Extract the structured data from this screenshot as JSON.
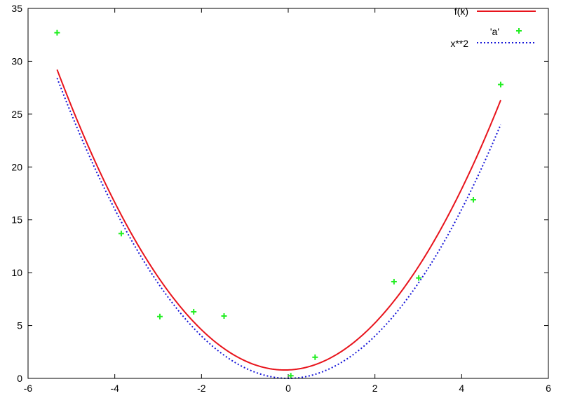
{
  "chart_data": {
    "type": "line",
    "title": "",
    "xlabel": "",
    "ylabel": "",
    "xlim": [
      -6,
      6
    ],
    "ylim": [
      0,
      35
    ],
    "x_ticks": [
      -6,
      -4,
      -2,
      0,
      2,
      4,
      6
    ],
    "y_ticks": [
      0,
      5,
      10,
      15,
      20,
      25,
      30,
      35
    ],
    "grid": false,
    "legend_position": "top-right",
    "series": [
      {
        "name": "f(x)",
        "kind": "line",
        "style": "solid",
        "color": "#e8141c",
        "x_range": [
          -5.33,
          4.9
        ],
        "function": {
          "form": "a*x^2 + b*x + c",
          "a": 1.03,
          "b": 0.16,
          "c": 0.8
        }
      },
      {
        "name": "'a'",
        "kind": "points",
        "marker": "plus",
        "color": "#22ee22",
        "points": [
          {
            "x": -5.33,
            "y": 32.7
          },
          {
            "x": -3.85,
            "y": 13.7
          },
          {
            "x": -2.96,
            "y": 5.85
          },
          {
            "x": -2.18,
            "y": 6.3
          },
          {
            "x": -1.48,
            "y": 5.9
          },
          {
            "x": 0.06,
            "y": 0.25
          },
          {
            "x": 0.62,
            "y": 2.0
          },
          {
            "x": 2.44,
            "y": 9.15
          },
          {
            "x": 3.01,
            "y": 9.5
          },
          {
            "x": 4.27,
            "y": 16.9
          },
          {
            "x": 4.9,
            "y": 27.8
          }
        ]
      },
      {
        "name": "x**2",
        "kind": "line",
        "style": "dotted",
        "color": "#1515d8",
        "x_range": [
          -5.33,
          4.9
        ],
        "function": {
          "form": "a*x^2 + b*x + c",
          "a": 1,
          "b": 0,
          "c": 0
        }
      }
    ]
  }
}
